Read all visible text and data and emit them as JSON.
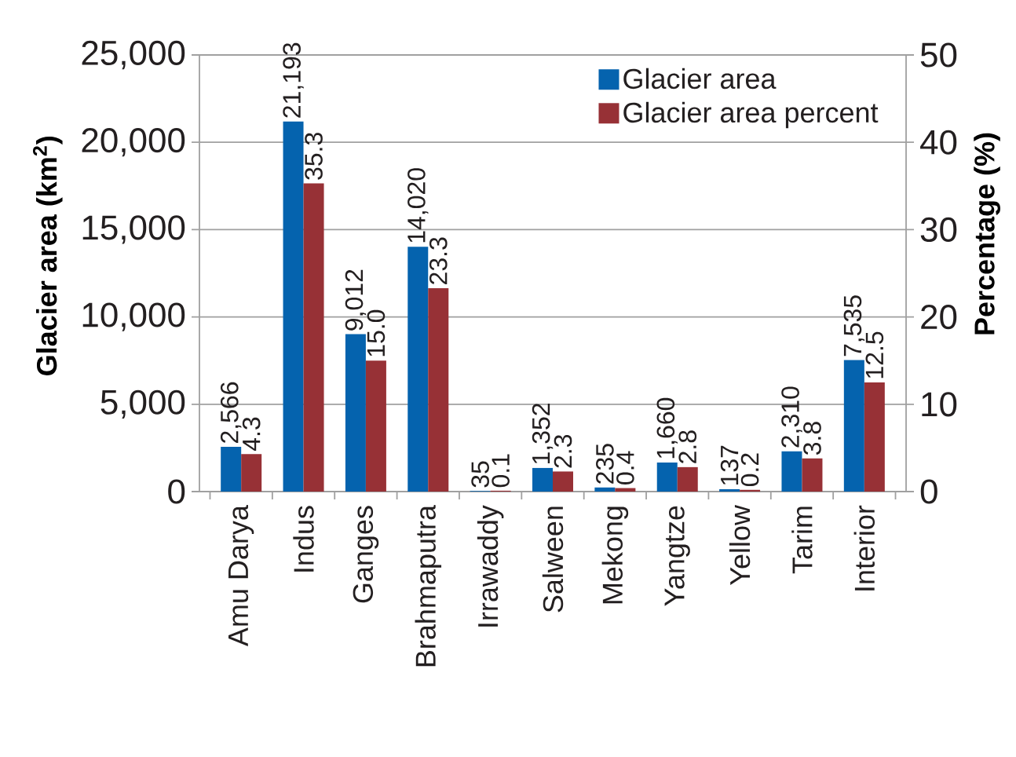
{
  "chart_data": {
    "type": "bar",
    "ylabel": "Glacier area (km$^{2}$)",
    "y2label": "Percentage (%)",
    "categories": [
      "Amu Darya",
      "Indus",
      "Ganges",
      "Brahmaputra",
      "Irrawaddy",
      "Salween",
      "Mekong",
      "Yangtze",
      "Yellow",
      "Tarim",
      "Interior"
    ],
    "series": [
      {
        "name": "Glacier area",
        "color": "#0563ae",
        "values": [
          2566,
          21193,
          9012,
          14020,
          35,
          1352,
          235,
          1660,
          137,
          2310,
          7535
        ],
        "value_labels": [
          "2,566",
          "21,193",
          "9,012",
          "14,020",
          "35",
          "1,352",
          "235",
          "1,660",
          "137",
          "2,310",
          "7,535"
        ]
      },
      {
        "name": "Glacier area percent",
        "color": "#973136",
        "axis": "y2",
        "values": [
          4.3,
          35.3,
          15.0,
          23.3,
          0.1,
          2.3,
          0.4,
          2.8,
          0.2,
          3.8,
          12.5
        ],
        "value_labels": [
          "4.3",
          "35.3",
          "15.0",
          "23.3",
          "0.1",
          "2.3",
          "0.4",
          "2.8",
          "0.2",
          "3.8",
          "12.5"
        ]
      }
    ],
    "ylim": [
      0,
      25000
    ],
    "yticks": [
      0,
      {
        "value": 5000,
        "label": "5,000"
      },
      {
        "value": 10000,
        "label": "10,000"
      },
      {
        "value": 15000,
        "label": "15,000"
      },
      {
        "value": 20000,
        "label": "20,000"
      },
      {
        "value": 25000,
        "label": "25,000"
      }
    ],
    "y2lim": [
      0,
      50
    ],
    "y2ticks": [
      0,
      10,
      20,
      30,
      40,
      50
    ],
    "grid": "y",
    "legend": "top right"
  }
}
